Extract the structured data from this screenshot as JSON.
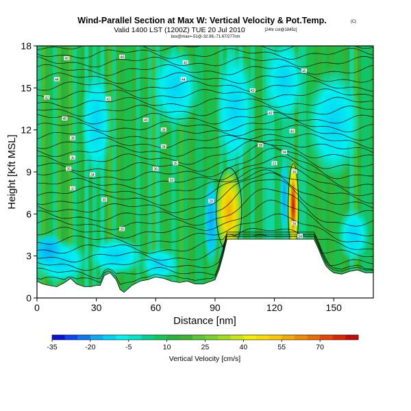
{
  "chart_data": {
    "type": "heatmap",
    "title": "Wind-Parallel Section at Max W: Vertical Velocity & Pot.Temp.",
    "title_mark": "(C)",
    "subtitle": "Valid 1400 LST (1200Z) TUE 20 Jul 2010",
    "subtitle_note": "[24hr cst@1845z]",
    "subtitle2": "box@max=-51@-32.98,-71.67/277nm",
    "xlabel": "Distance [nm]",
    "ylabel": "Height [Kft MSL]",
    "xlim": [
      0,
      170
    ],
    "ylim": [
      0,
      18
    ],
    "xticks": [
      0,
      30,
      60,
      90,
      120,
      150
    ],
    "yticks": [
      0,
      3,
      6,
      9,
      12,
      15,
      18
    ],
    "colorbar": {
      "label": "Vertical Velocity [cm/s]",
      "range": [
        -35,
        85
      ],
      "tick_values": [
        -35,
        -20,
        -5,
        10,
        25,
        40,
        55,
        70
      ],
      "tick_labels": [
        "-35",
        "-20",
        "-5",
        "10",
        "25",
        "40",
        "55",
        "70"
      ],
      "levels": [
        -35,
        -30,
        -25,
        -20,
        -15,
        -10,
        -5,
        0,
        5,
        10,
        15,
        20,
        25,
        30,
        35,
        40,
        45,
        50,
        55,
        60,
        65,
        70,
        75,
        80,
        85
      ],
      "colors": [
        "#0a14d2",
        "#0f46f0",
        "#0f78f0",
        "#0aaaf5",
        "#00d2f5",
        "#00f0f0",
        "#00e6c8",
        "#00d28c",
        "#10c85a",
        "#28b43c",
        "#3cb432",
        "#5ac832",
        "#78d228",
        "#a0dc1e",
        "#c8e614",
        "#f0f000",
        "#fadc00",
        "#fac800",
        "#f5aa00",
        "#f08c00",
        "#eb6e00",
        "#e64600",
        "#dc2800",
        "#c80a0a"
      ]
    },
    "terrain": [
      [
        0,
        1.2
      ],
      [
        3,
        1.0
      ],
      [
        6,
        0.9
      ],
      [
        10,
        0.8
      ],
      [
        14,
        1.1
      ],
      [
        17,
        1.4
      ],
      [
        20,
        1.0
      ],
      [
        24,
        0.8
      ],
      [
        27,
        0.8
      ],
      [
        30,
        0.9
      ],
      [
        32,
        0.9
      ],
      [
        34,
        1.6
      ],
      [
        37,
        1.8
      ],
      [
        40,
        1.3
      ],
      [
        42,
        0.6
      ],
      [
        44,
        0.4
      ],
      [
        48,
        0.9
      ],
      [
        52,
        1.2
      ],
      [
        56,
        1.3
      ],
      [
        60,
        1.5
      ],
      [
        64,
        1.4
      ],
      [
        68,
        1.2
      ],
      [
        72,
        1.1
      ],
      [
        76,
        1.2
      ],
      [
        80,
        1.0
      ],
      [
        84,
        1.0
      ],
      [
        88,
        1.2
      ],
      [
        90,
        1.3
      ],
      [
        92,
        2.0
      ],
      [
        94,
        3.0
      ],
      [
        96,
        4.2
      ],
      [
        140,
        4.2
      ],
      [
        142,
        3.6
      ],
      [
        144,
        2.9
      ],
      [
        146,
        2.3
      ],
      [
        148,
        2.0
      ],
      [
        150,
        1.8
      ],
      [
        154,
        1.7
      ],
      [
        158,
        1.9
      ],
      [
        162,
        2.0
      ],
      [
        166,
        1.8
      ],
      [
        170,
        1.8
      ]
    ],
    "contour_labels": [
      {
        "x": 10,
        "y": 15.6,
        "text": "44"
      },
      {
        "x": 15,
        "y": 17.1,
        "text": "42"
      },
      {
        "x": 43,
        "y": 17.2,
        "text": "44"
      },
      {
        "x": 75,
        "y": 16.8,
        "text": "45"
      },
      {
        "x": 135,
        "y": 16.2,
        "text": "45"
      },
      {
        "x": 5,
        "y": 14.3,
        "text": "42"
      },
      {
        "x": 36,
        "y": 14.2,
        "text": "43"
      },
      {
        "x": 74,
        "y": 15.6,
        "text": "44"
      },
      {
        "x": 109,
        "y": 14.8,
        "text": "43"
      },
      {
        "x": 14,
        "y": 12.8,
        "text": "40"
      },
      {
        "x": 55,
        "y": 12.7,
        "text": "40"
      },
      {
        "x": 118,
        "y": 13.2,
        "text": "42"
      },
      {
        "x": 18,
        "y": 11.4,
        "text": "38"
      },
      {
        "x": 64,
        "y": 12.0,
        "text": "38"
      },
      {
        "x": 113,
        "y": 10.9,
        "text": "38"
      },
      {
        "x": 18,
        "y": 10.0,
        "text": "36"
      },
      {
        "x": 60,
        "y": 9.2,
        "text": "36"
      },
      {
        "x": 129,
        "y": 11.9,
        "text": "40"
      },
      {
        "x": 16,
        "y": 9.2,
        "text": "35"
      },
      {
        "x": 70,
        "y": 9.6,
        "text": "35"
      },
      {
        "x": 125,
        "y": 10.4,
        "text": "34"
      },
      {
        "x": 28,
        "y": 8.8,
        "text": "34"
      },
      {
        "x": 64,
        "y": 10.8,
        "text": "34"
      },
      {
        "x": 120,
        "y": 9.6,
        "text": "32"
      },
      {
        "x": 18,
        "y": 7.8,
        "text": "32"
      },
      {
        "x": 68,
        "y": 8.4,
        "text": "32"
      },
      {
        "x": 130,
        "y": 9.0,
        "text": "30"
      },
      {
        "x": 34,
        "y": 7.0,
        "text": "30"
      },
      {
        "x": 88,
        "y": 6.9,
        "text": "28"
      },
      {
        "x": 43,
        "y": 4.9,
        "text": "26"
      },
      {
        "x": 130,
        "y": 5.3,
        "text": "26"
      },
      {
        "x": 133,
        "y": 4.4,
        "text": "24"
      }
    ]
  }
}
